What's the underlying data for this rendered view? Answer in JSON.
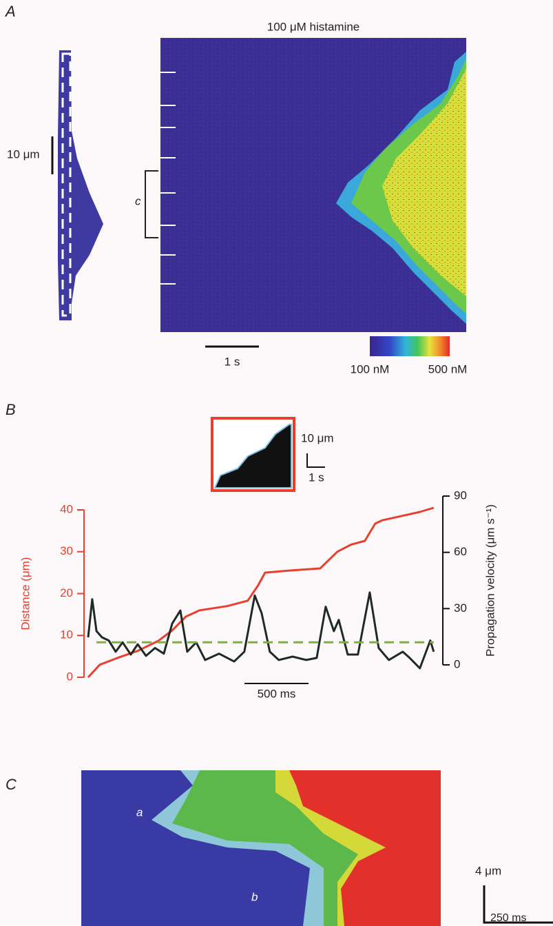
{
  "figure": {
    "panel_labels": [
      "A",
      "B",
      "C"
    ],
    "a": {
      "title": "100 μM histamine",
      "length_scale": "10 μm",
      "bracket": "c",
      "time_scale": "1 s",
      "colorbar_min": "100 nM",
      "colorbar_max": "500 nM"
    },
    "b_inset": {
      "length_scale": "10 μm",
      "time_scale": "1 s"
    },
    "c": {
      "labels": [
        "a",
        "b"
      ],
      "length_scale": "4 μm",
      "time_scale": "250 ms"
    }
  },
  "chart_data": {
    "type": "line",
    "ylabel": "Distance (μm)",
    "y2label": "Propagation velocity (μm s⁻¹)",
    "ycolor": "#e8402f",
    "xlim": [
      0,
      2700
    ],
    "ylim": [
      0,
      40
    ],
    "yticks": [
      0,
      10,
      20,
      30,
      40
    ],
    "y2lim": [
      0,
      90
    ],
    "y2ticks": [
      0,
      30,
      60,
      90
    ],
    "scalebar": {
      "value": 500,
      "label": "500 ms"
    },
    "series": [
      {
        "color": "#e8402f",
        "x": [
          0,
          91,
          226,
          387,
          548,
          656,
          763,
          871,
          1086,
          1247,
          1328,
          1382,
          1570,
          1812,
          1946,
          2054,
          2161,
          2242,
          2296,
          2430,
          2591,
          2699
        ],
        "values": [
          0,
          3,
          4.6,
          6.3,
          8.7,
          11.2,
          14.5,
          16,
          17,
          18.3,
          22,
          25,
          25.5,
          26,
          30,
          31.7,
          32.6,
          36.7,
          37.5,
          38.4,
          39.5,
          40.5
        ]
      },
      {
        "color": "#1f2a24",
        "axis": "y2",
        "x": [
          0,
          32,
          65,
          108,
          161,
          215,
          269,
          333,
          387,
          452,
          522,
          591,
          656,
          720,
          774,
          844,
          914,
          1022,
          1140,
          1220,
          1301,
          1355,
          1419,
          1489,
          1597,
          1704,
          1785,
          1855,
          1919,
          1957,
          2027,
          2107,
          2199,
          2269,
          2349,
          2457,
          2511,
          2591,
          2672,
          2699
        ],
        "values": [
          14.7,
          35,
          18,
          14.7,
          13,
          7,
          12,
          5.5,
          11,
          4.8,
          9,
          6,
          22,
          29,
          7,
          12,
          2.6,
          6,
          1.8,
          7,
          37,
          27.6,
          7,
          2.6,
          4.4,
          2.6,
          3.7,
          31,
          18,
          24,
          5.5,
          5.5,
          38.6,
          9,
          2.6,
          7,
          3.7,
          -1.8,
          13,
          7
        ]
      },
      {
        "color": "#7ab33a",
        "axis": "y2",
        "style": "dashed",
        "x": [
          65,
          2699
        ],
        "values": [
          12,
          12
        ]
      }
    ]
  }
}
